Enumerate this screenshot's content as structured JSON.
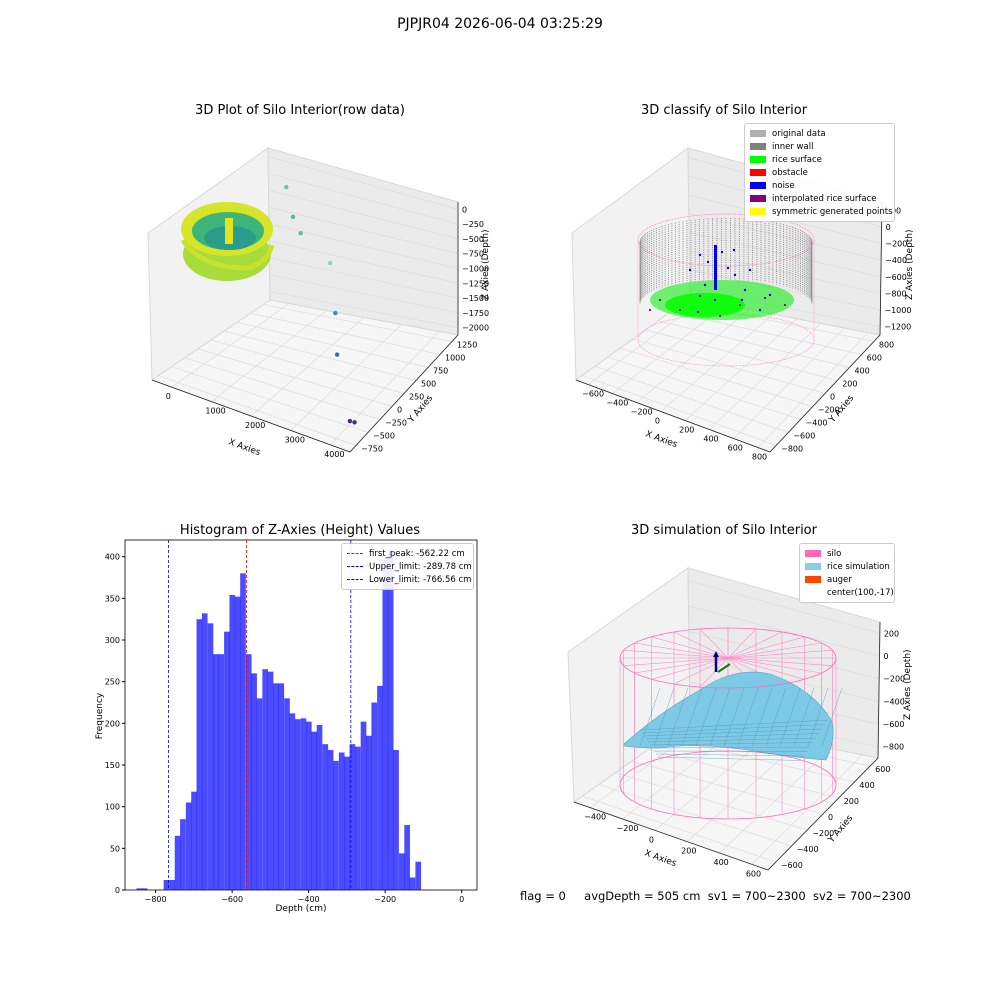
{
  "suptitle": "PJPJR04 2026-06-04 03:25:29",
  "panels": {
    "raw": {
      "title": "3D Plot of Silo Interior(row data)",
      "xlabel": "X Axies",
      "ylabel": "Y Axies",
      "zlabel": "Z Axies (Depth)",
      "xticks": [
        "0",
        "1000",
        "2000",
        "3000",
        "4000"
      ],
      "yticks": [
        "−750",
        "−500",
        "−250",
        "0",
        "250",
        "500",
        "750",
        "1000",
        "1250"
      ],
      "zticks": [
        "0",
        "−250",
        "−500",
        "−750",
        "−1000",
        "−1250",
        "−1500",
        "−1750",
        "−2000"
      ]
    },
    "classify": {
      "title": "3D classify of Silo Interior",
      "xlabel": "X Axies",
      "ylabel": "Y Axies",
      "zlabel": "Z Axies (Depth)",
      "xticks": [
        "−600",
        "−400",
        "−200",
        "0",
        "200",
        "400",
        "600",
        "800"
      ],
      "yticks": [
        "−800",
        "−600",
        "−400",
        "−200",
        "0",
        "200",
        "400",
        "600",
        "800"
      ],
      "zticks": [
        "200",
        "0",
        "−200",
        "−400",
        "−600",
        "−800",
        "−1000",
        "−1200"
      ],
      "legend": [
        {
          "label": "original data",
          "color": "#b0b0b0"
        },
        {
          "label": "inner wall",
          "color": "#808080"
        },
        {
          "label": "rice surface",
          "color": "#00ff00"
        },
        {
          "label": "obstacle",
          "color": "#ff0000"
        },
        {
          "label": "noise",
          "color": "#0000ff"
        },
        {
          "label": "interpolated rice surface",
          "color": "#800080"
        },
        {
          "label": "symmetric generated points",
          "color": "#ffff00"
        }
      ]
    },
    "histogram": {
      "title": "Histogram of Z-Axies (Height) Values",
      "xlabel": "Depth (cm)",
      "ylabel": "Frequency",
      "legend": [
        {
          "label": "first_peak: -562.22 cm",
          "color": "#ff0000"
        },
        {
          "label": "Upper_limit: -289.78 cm",
          "color": "#0000ff"
        },
        {
          "label": "Lower_limit: -766.56 cm",
          "color": "#0000ff"
        }
      ]
    },
    "simulation": {
      "title": "3D simulation of Silo Interior",
      "xlabel": "X Axies",
      "ylabel": "Y Axies",
      "zlabel": "Z Axies (Depth)",
      "xticks": [
        "−400",
        "−200",
        "0",
        "200",
        "400",
        "600"
      ],
      "yticks": [
        "−600",
        "−400",
        "−200",
        "0",
        "200",
        "400",
        "600"
      ],
      "zticks": [
        "200",
        "0",
        "−200",
        "−400",
        "−600",
        "−800"
      ],
      "legend": [
        {
          "label": "silo",
          "color": "#ff69b4"
        },
        {
          "label": "rice simulation",
          "color": "#87ceeb"
        },
        {
          "label": "auger",
          "color": "#ff4500"
        },
        {
          "label": "center(100,-17)",
          "color": ""
        }
      ]
    }
  },
  "footer": {
    "flag": "flag = 0",
    "avg": "avgDepth = 505 cm",
    "sv1": "sv1 = 700~2300",
    "sv2": "sv2 = 700~2300"
  },
  "chart_data": [
    {
      "type": "scatter",
      "title": "3D Plot of Silo Interior(row data)",
      "xlabel": "X Axies",
      "ylabel": "Y Axies",
      "zlabel": "Z Axies (Depth)",
      "xlim": [
        -500,
        4200
      ],
      "ylim": [
        -750,
        1400
      ],
      "zlim": [
        -2100,
        100
      ],
      "series": [
        {
          "x": [
            600,
            1000,
            1300,
            2000,
            2600,
            3000,
            3900,
            3950
          ],
          "y": [
            1000,
            800,
            700,
            700,
            300,
            0,
            -500,
            -450
          ],
          "z": [
            -300,
            -500,
            -600,
            -900,
            -1200,
            -1500,
            -1900,
            -1950
          ]
        }
      ]
    },
    {
      "type": "scatter",
      "title": "3D classify of Silo Interior",
      "xlabel": "X Axies",
      "ylabel": "Y Axies",
      "zlabel": "Z Axies (Depth)",
      "xlim": [
        -700,
        900
      ],
      "ylim": [
        -850,
        850
      ],
      "zlim": [
        -1250,
        250
      ],
      "series": [
        {
          "name": "original data"
        },
        {
          "name": "inner wall"
        },
        {
          "name": "rice surface"
        },
        {
          "name": "obstacle"
        },
        {
          "name": "noise"
        },
        {
          "name": "interpolated rice surface"
        },
        {
          "name": "symmetric generated points"
        }
      ]
    },
    {
      "type": "bar",
      "title": "Histogram of Z-Axies (Height) Values",
      "xlabel": "Depth (cm)",
      "ylabel": "Frequency",
      "xlim": [
        -880,
        40
      ],
      "ylim": [
        0,
        420
      ],
      "xticks": [
        -800,
        -600,
        -400,
        -200,
        0
      ],
      "yticks": [
        0,
        50,
        100,
        150,
        200,
        250,
        300,
        350,
        400
      ],
      "bin_width": 14.3,
      "bin_starts": [
        -850,
        -836,
        -821,
        -807,
        -793,
        -779,
        -764,
        -750,
        -736,
        -721,
        -707,
        -693,
        -679,
        -664,
        -650,
        -636,
        -621,
        -607,
        -593,
        -579,
        -564,
        -550,
        -536,
        -521,
        -507,
        -493,
        -479,
        -464,
        -450,
        -436,
        -421,
        -407,
        -393,
        -379,
        -364,
        -350,
        -336,
        -321,
        -307,
        -293,
        -279,
        -264,
        -250,
        -236,
        -221,
        -207,
        -193,
        -179,
        -164,
        -150,
        -136,
        -121,
        -107,
        -93,
        -79,
        -64,
        -50,
        -36,
        -21,
        -7
      ],
      "values": [
        2,
        2,
        0,
        0,
        0,
        12,
        12,
        65,
        85,
        105,
        118,
        325,
        332,
        320,
        283,
        283,
        310,
        354,
        352,
        380,
        283,
        260,
        230,
        265,
        262,
        248,
        248,
        230,
        212,
        205,
        206,
        202,
        190,
        198,
        175,
        168,
        155,
        165,
        160,
        175,
        172,
        202,
        185,
        225,
        245,
        398,
        408,
        168,
        44,
        78,
        15,
        34,
        0,
        0,
        0,
        0,
        0,
        0,
        0,
        0
      ],
      "vlines": [
        {
          "label": "first_peak: -562.22 cm",
          "x": -562.22,
          "color": "#ff0000"
        },
        {
          "label": "Upper_limit: -289.78 cm",
          "x": -289.78,
          "color": "#0000ff"
        },
        {
          "label": "Lower_limit: -766.56 cm",
          "x": -766.56,
          "color": "#0000ff"
        }
      ]
    },
    {
      "type": "area",
      "title": "3D simulation of Silo Interior",
      "xlabel": "X Axies",
      "ylabel": "Y Axies",
      "zlabel": "Z Axies (Depth)",
      "xlim": [
        -500,
        700
      ],
      "ylim": [
        -700,
        700
      ],
      "zlim": [
        -900,
        300
      ],
      "center": [
        100,
        -17
      ],
      "series": [
        {
          "name": "silo"
        },
        {
          "name": "rice simulation"
        },
        {
          "name": "auger"
        },
        {
          "name": "center(100,-17)"
        }
      ]
    }
  ]
}
